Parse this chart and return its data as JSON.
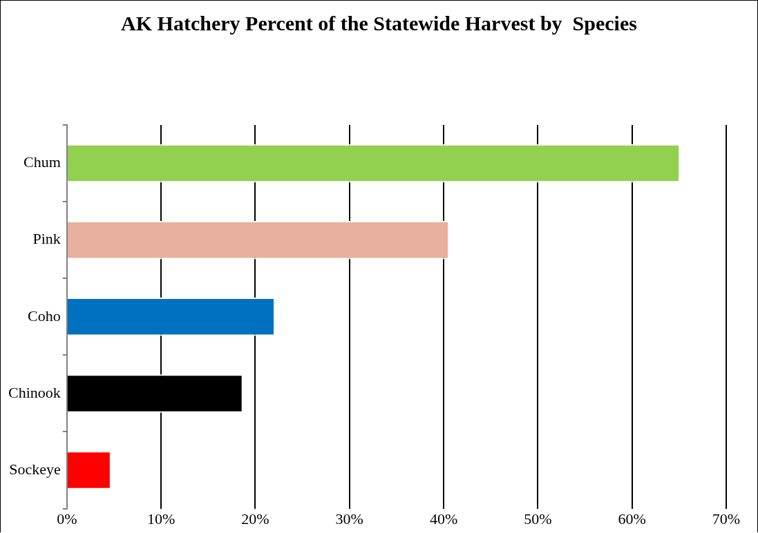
{
  "chart_data": {
    "type": "bar",
    "orientation": "horizontal",
    "title": "AK Hatchery Percent of the Statewide Harvest by  Species",
    "categories": [
      "Chum",
      "Pink",
      "Coho",
      "Chinook",
      "Sockeye"
    ],
    "values": [
      65.1,
      40.6,
      22.1,
      18.7,
      4.7
    ],
    "colors": [
      "#92d050",
      "#e8b09e",
      "#0070c0",
      "#000000",
      "#ff0000"
    ],
    "xlim": [
      0,
      70
    ],
    "xticks": [
      {
        "value": 0,
        "label": "0%"
      },
      {
        "value": 10,
        "label": "10%"
      },
      {
        "value": 20,
        "label": "20%"
      },
      {
        "value": 30,
        "label": "30%"
      },
      {
        "value": 40,
        "label": "40%"
      },
      {
        "value": 50,
        "label": "50%"
      },
      {
        "value": 60,
        "label": "60%"
      },
      {
        "value": 70,
        "label": "70%"
      }
    ],
    "grid": "x",
    "legend": false
  }
}
